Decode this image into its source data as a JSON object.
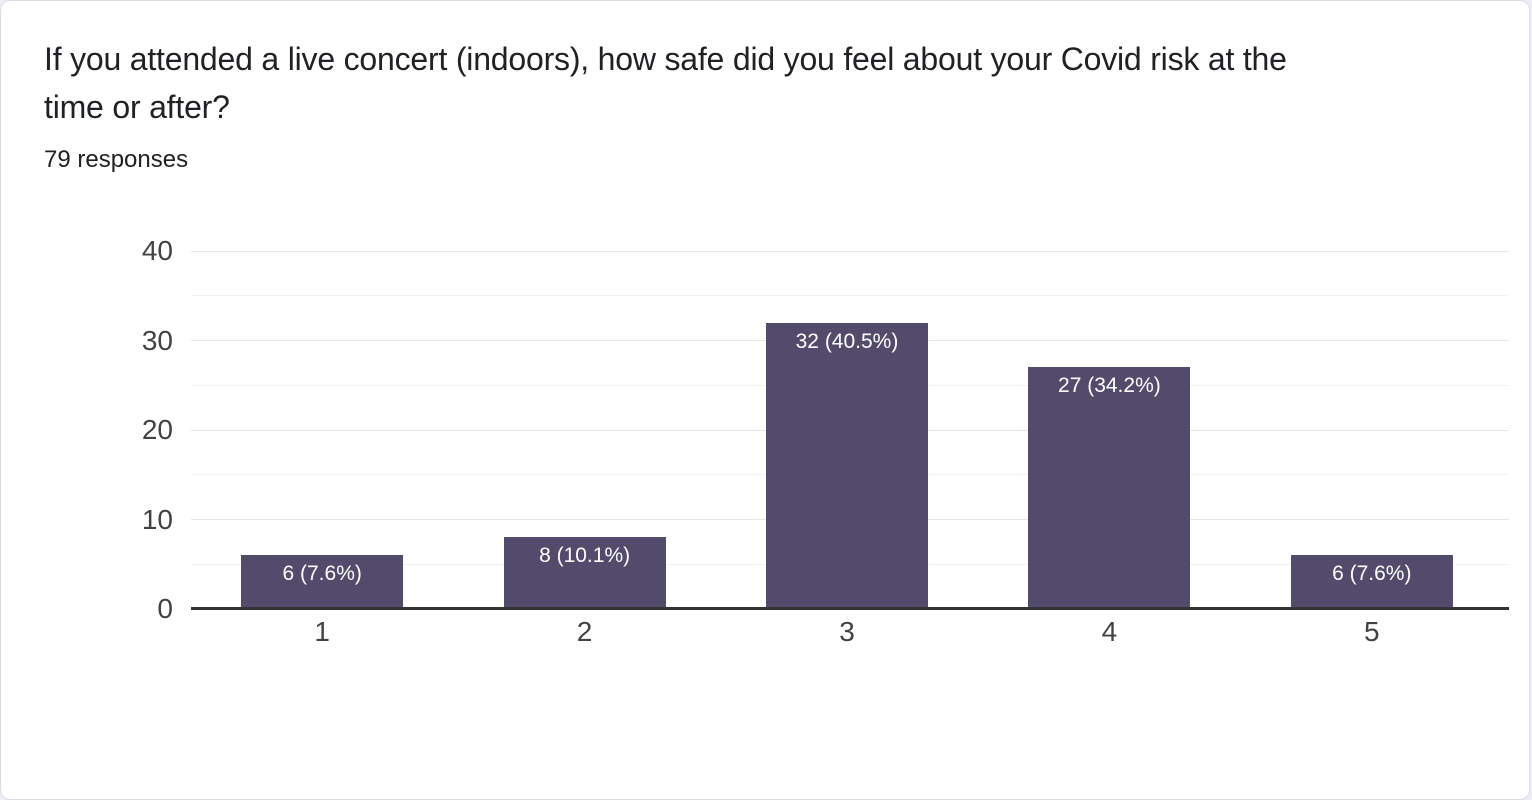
{
  "card": {
    "title_lines": [
      "If you attended a live concert (indoors), how safe did you feel about your Covid risk at the",
      "time or after?"
    ],
    "responses_label": "79 responses"
  },
  "colors": {
    "bar": "#534b6c",
    "bar_label_text": "#ffffff",
    "axis_line": "#333333",
    "gridline_major": "#e6e6e6",
    "gridline_minor": "#f2f2f2",
    "axis_label_text": "#424242",
    "title_text": "#202124",
    "card_background": "#ffffff",
    "page_background": "#f0ebf8",
    "card_border": "#dadce0"
  },
  "chart_data": {
    "type": "bar",
    "title": "If you attended a live concert (indoors), how safe did you feel about your Covid risk at the time or after?",
    "subtitle": "79 responses",
    "total_responses": 79,
    "categories": [
      "1",
      "2",
      "3",
      "4",
      "5"
    ],
    "values": [
      6,
      8,
      32,
      27,
      6
    ],
    "bar_labels": [
      "6 (7.6%)",
      "8 (10.1%)",
      "32 (40.5%)",
      "27 (34.2%)",
      "6 (7.6%)"
    ],
    "xlabel": "",
    "ylabel": "",
    "ylim": [
      0,
      40
    ],
    "y_ticks": [
      0,
      10,
      20,
      30,
      40
    ],
    "y_minor_step": 5,
    "grid": "horizontal",
    "legend": "none"
  }
}
